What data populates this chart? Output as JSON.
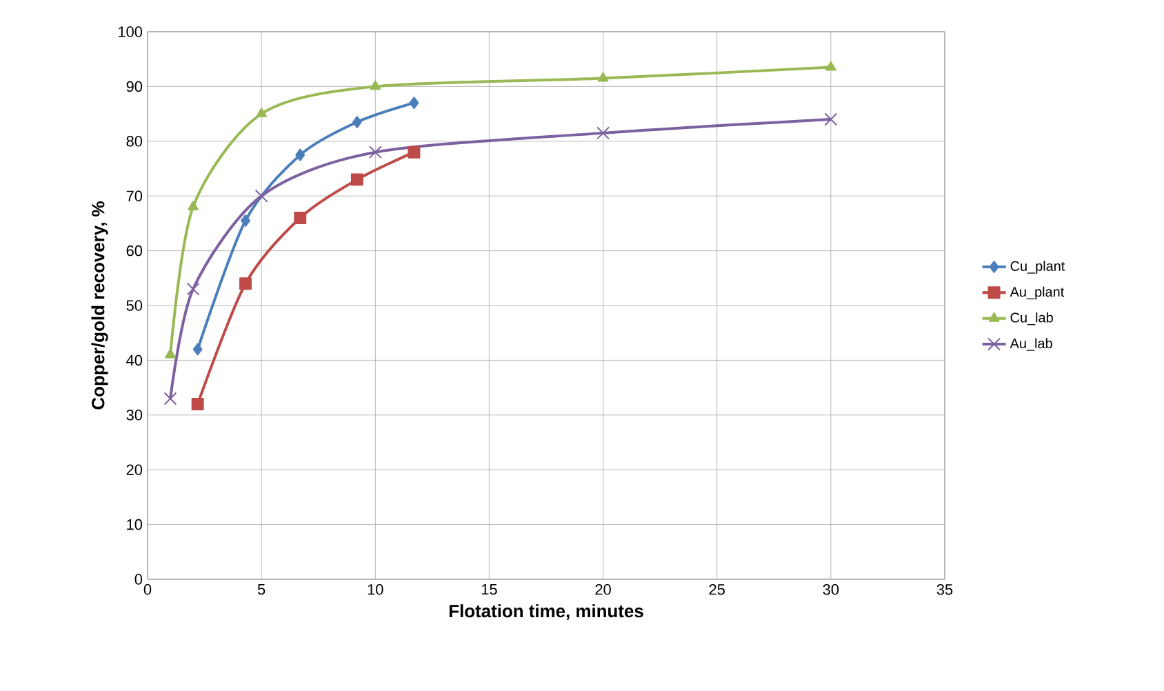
{
  "chart_data": {
    "type": "line",
    "xlabel": "Flotation time, minutes",
    "ylabel": "Copper/gold recovery, %",
    "xlim": [
      0,
      35
    ],
    "xticks": [
      0,
      5,
      10,
      15,
      20,
      25,
      30,
      35
    ],
    "ylim": [
      0,
      100
    ],
    "yticks": [
      0,
      10,
      20,
      30,
      40,
      50,
      60,
      70,
      80,
      90,
      100
    ],
    "grid": true,
    "legend": "right",
    "series": [
      {
        "name": "Cu_plant",
        "color": "#4a7ebb",
        "marker": "diamond",
        "x": [
          2.2,
          4.3,
          6.7,
          9.2,
          11.7
        ],
        "values": [
          42,
          65.5,
          77.5,
          83.5,
          87
        ]
      },
      {
        "name": "Au_plant",
        "color": "#be4b48",
        "marker": "square",
        "x": [
          2.2,
          4.3,
          6.7,
          9.2,
          11.7
        ],
        "values": [
          32,
          54,
          66,
          73,
          78
        ]
      },
      {
        "name": "Cu_lab",
        "color": "#98b954",
        "marker": "triangle",
        "x": [
          1,
          2,
          5,
          10,
          20,
          30
        ],
        "values": [
          41,
          68,
          85,
          90,
          91.5,
          93.5
        ]
      },
      {
        "name": "Au_lab",
        "color": "#7d60a0",
        "marker": "cross",
        "x": [
          1,
          2,
          5,
          10,
          20,
          30
        ],
        "values": [
          33,
          53,
          70,
          78,
          81.5,
          84
        ]
      }
    ]
  }
}
